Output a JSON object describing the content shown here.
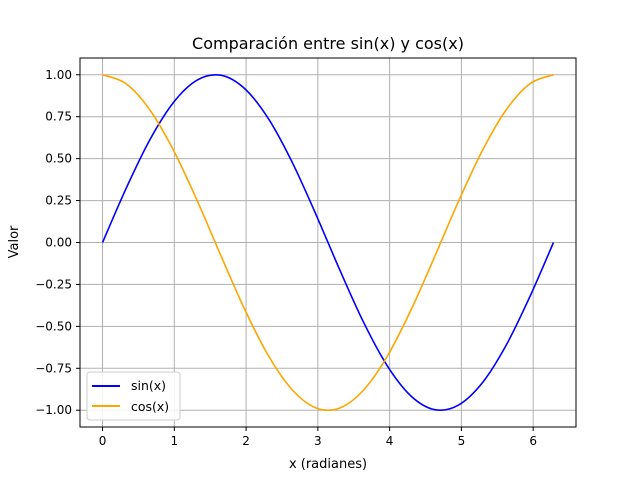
{
  "chart_data": {
    "type": "line",
    "title": "Comparación entre sin(x) y cos(x)",
    "xlabel": "x (radianes)",
    "ylabel": "Valor",
    "xlim": [
      -0.314,
      6.597
    ],
    "ylim": [
      -1.1,
      1.1
    ],
    "xticks": [
      0,
      1,
      2,
      3,
      4,
      5,
      6
    ],
    "xtick_labels": [
      "0",
      "1",
      "2",
      "3",
      "4",
      "5",
      "6"
    ],
    "yticks": [
      -1.0,
      -0.75,
      -0.5,
      -0.25,
      0.0,
      0.25,
      0.5,
      0.75,
      1.0
    ],
    "ytick_labels": [
      "−1.00",
      "−0.75",
      "−0.50",
      "−0.25",
      "0.00",
      "0.25",
      "0.50",
      "0.75",
      "1.00"
    ],
    "grid": true,
    "legend_position": "lower-left",
    "x": [
      0,
      0.3307,
      0.6614,
      0.9921,
      1.3228,
      1.6535,
      1.9842,
      2.3149,
      2.6456,
      2.9762,
      3.3069,
      3.6376,
      3.9683,
      4.299,
      4.6297,
      4.9604,
      5.2911,
      5.6218,
      5.9525,
      6.2832
    ],
    "series": [
      {
        "name": "sin(x)",
        "color": "#0000ff",
        "values": [
          0,
          0.3247,
          0.6142,
          0.8372,
          0.9694,
          0.9966,
          0.9158,
          0.7357,
          0.4759,
          0.1646,
          -0.1646,
          -0.4759,
          -0.7357,
          -0.9158,
          -0.9966,
          -0.9694,
          -0.8372,
          -0.6142,
          -0.3247,
          0
        ]
      },
      {
        "name": "cos(x)",
        "color": "#ffa500",
        "values": [
          1,
          0.9458,
          0.7891,
          0.5469,
          0.2455,
          -0.0826,
          -0.4017,
          -0.6773,
          -0.8795,
          -0.9864,
          -0.9864,
          -0.8795,
          -0.6773,
          -0.4017,
          -0.0826,
          0.2455,
          0.5469,
          0.7891,
          0.9458,
          1
        ]
      }
    ]
  }
}
